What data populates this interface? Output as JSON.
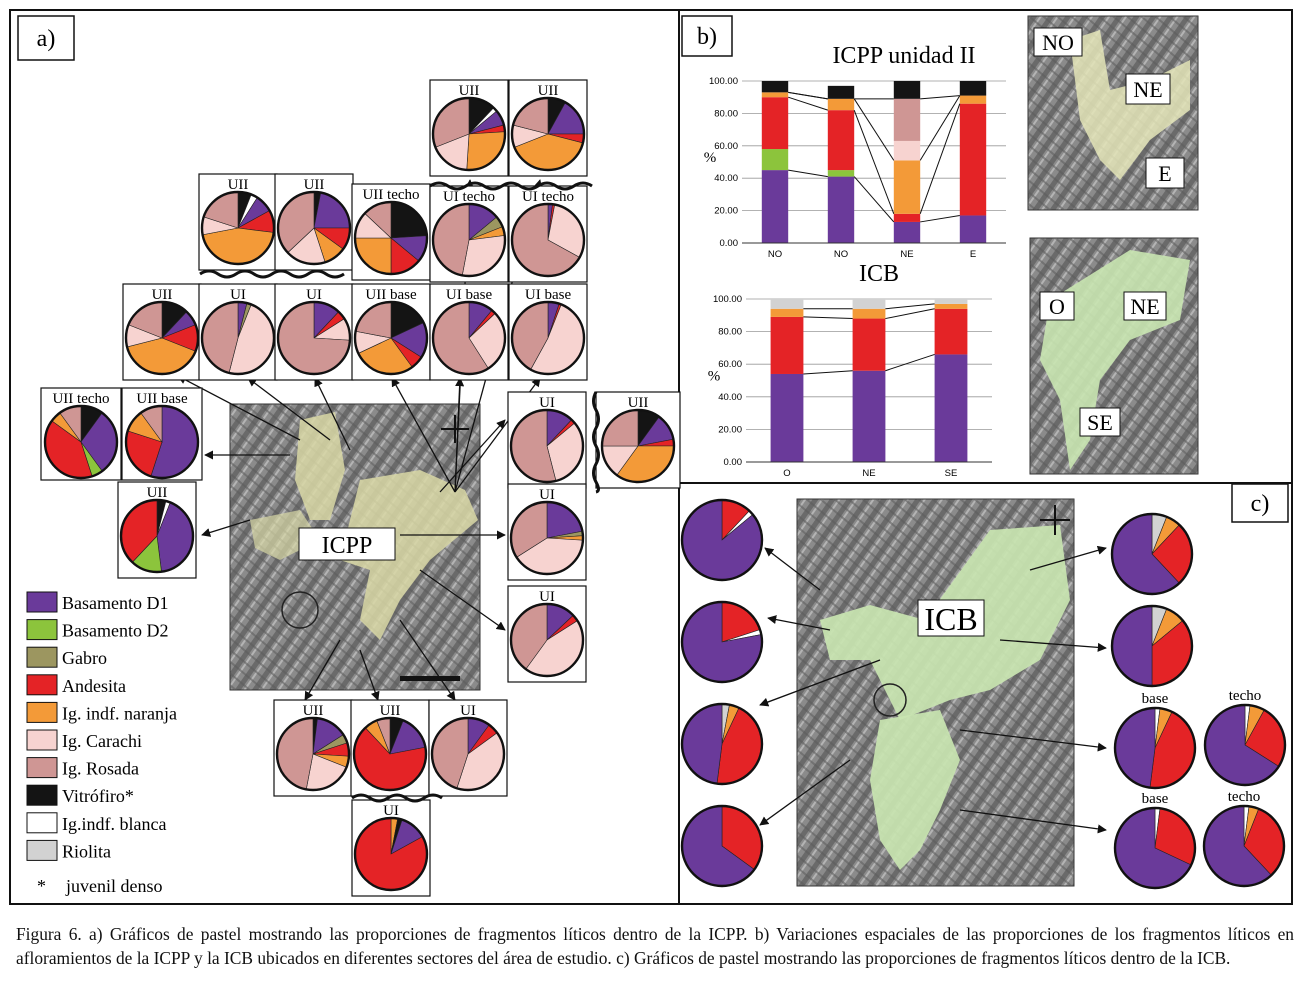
{
  "panels": {
    "a": "a)",
    "b": "b)",
    "c": "c)"
  },
  "colors": {
    "Basamento D1": "#6a3a9a",
    "Basamento D2": "#8cc43c",
    "Gabro": "#9c9660",
    "Andesita": "#e42326",
    "Ig. indf. naranja": "#f39a38",
    "Ig. Carachi": "#f7d3d0",
    "Ig. Rosada": "#cf9694",
    "Vitrófiro*": "#141414",
    "Ig.indf. blanca": "#ffffff",
    "Riolita": "#d2d2d2"
  },
  "legend": {
    "items": [
      "Basamento D1",
      "Basamento D2",
      "Gabro",
      "Andesita",
      "Ig. indf. naranja",
      "Ig. Carachi",
      "Ig. Rosada",
      "Vitrófiro*",
      "Ig.indf. blanca",
      "Riolita"
    ],
    "footnote_mark": "*",
    "footnote": "juvenil denso"
  },
  "map_labels": {
    "icpp": "ICPP",
    "icb": "ICB"
  },
  "inset_labels": {
    "icpp": [
      "NO",
      "NE",
      "E"
    ],
    "icb": [
      "O",
      "NE",
      "SE"
    ]
  },
  "chart_data": [
    {
      "type": "bar",
      "stacked": true,
      "title": "ICPP unidad II",
      "xlabel": "",
      "ylabel": "%",
      "categories": [
        "NO",
        "NO",
        "NE",
        "E"
      ],
      "ylim": [
        0,
        100
      ],
      "yticks": [
        "0.00",
        "20.00",
        "40.00",
        "60.00",
        "80.00",
        "100.00"
      ],
      "series": [
        {
          "name": "Basamento D1",
          "values": [
            45,
            41,
            13,
            17
          ]
        },
        {
          "name": "Basamento D2",
          "values": [
            13,
            4,
            0,
            0
          ]
        },
        {
          "name": "Andesita",
          "values": [
            32,
            37,
            5,
            69
          ]
        },
        {
          "name": "Ig. indf. naranja",
          "values": [
            3,
            7,
            33,
            5
          ]
        },
        {
          "name": "Ig. Carachi",
          "values": [
            0,
            0,
            12,
            0
          ]
        },
        {
          "name": "Ig. Rosada",
          "values": [
            0,
            0,
            26,
            0
          ]
        },
        {
          "name": "Vitrófiro*",
          "values": [
            7,
            8,
            11,
            9
          ]
        }
      ]
    },
    {
      "type": "bar",
      "stacked": true,
      "title": "ICB",
      "xlabel": "",
      "ylabel": "%",
      "categories": [
        "O",
        "NE",
        "SE"
      ],
      "ylim": [
        0,
        100
      ],
      "yticks": [
        "0.00",
        "20.00",
        "40.00",
        "60.00",
        "80.00",
        "100.00"
      ],
      "series": [
        {
          "name": "Basamento D1",
          "values": [
            54,
            56,
            66
          ]
        },
        {
          "name": "Andesita",
          "values": [
            35,
            32,
            28
          ]
        },
        {
          "name": "Ig. indf. naranja",
          "values": [
            5,
            6,
            3
          ]
        },
        {
          "name": "Riolita",
          "values": [
            6,
            6,
            3
          ]
        }
      ]
    },
    {
      "type": "pie",
      "panel": "a",
      "pies": [
        {
          "label": "UII",
          "slices": {
            "Vitrófiro*": 12,
            "Ig.indf. blanca": 2,
            "Basamento D1": 7,
            "Andesita": 3,
            "Ig. indf. naranja": 27,
            "Ig. Carachi": 18,
            "Ig. Rosada": 31
          }
        },
        {
          "label": "UII",
          "slices": {
            "Vitrófiro*": 8,
            "Basamento D1": 17,
            "Andesita": 4,
            "Ig. indf. naranja": 40,
            "Ig. Carachi": 10,
            "Ig. Rosada": 21
          }
        },
        {
          "label": "UII",
          "slices": {
            "Vitrófiro*": 6,
            "Ig.indf. blanca": 3,
            "Basamento D1": 8,
            "Andesita": 10,
            "Ig. indf. naranja": 45,
            "Ig. Carachi": 8,
            "Ig. Rosada": 20
          }
        },
        {
          "label": "UII",
          "slices": {
            "Vitrófiro*": 3,
            "Basamento D1": 22,
            "Andesita": 10,
            "Ig. indf. naranja": 10,
            "Ig. Carachi": 18,
            "Ig. Rosada": 37
          }
        },
        {
          "label": "UII techo",
          "slices": {
            "Vitrófiro*": 24,
            "Basamento D1": 12,
            "Andesita": 14,
            "Ig. indf. naranja": 25,
            "Ig. Carachi": 12,
            "Ig. Rosada": 13
          }
        },
        {
          "label": "UI techo",
          "slices": {
            "Basamento D1": 14,
            "Gabro": 5,
            "Ig. indf. naranja": 4,
            "Ig. Carachi": 30,
            "Ig. Rosada": 47
          }
        },
        {
          "label": "UI techo",
          "slices": {
            "Basamento D1": 2,
            "Andesita": 1,
            "Ig. Carachi": 30,
            "Ig. Rosada": 67
          }
        },
        {
          "label": "UII",
          "slices": {
            "Vitrófiro*": 12,
            "Basamento D1": 7,
            "Andesita": 12,
            "Ig. indf. naranja": 40,
            "Ig. Carachi": 10,
            "Ig. Rosada": 19
          }
        },
        {
          "label": "UI",
          "slices": {
            "Basamento D1": 4,
            "Gabro": 2,
            "Ig. Carachi": 48,
            "Ig. Rosada": 46
          }
        },
        {
          "label": "UI",
          "slices": {
            "Basamento D1": 12,
            "Andesita": 4,
            "Ig. Carachi": 10,
            "Ig. Rosada": 74
          }
        },
        {
          "label": "UII base",
          "slices": {
            "Vitrófiro*": 18,
            "Basamento D1": 16,
            "Andesita": 6,
            "Ig. indf. naranja": 28,
            "Ig. Carachi": 10,
            "Ig. Rosada": 22
          }
        },
        {
          "label": "UI base",
          "slices": {
            "Basamento D1": 11,
            "Andesita": 2,
            "Ig. Carachi": 28,
            "Ig. Rosada": 59
          }
        },
        {
          "label": "UI base",
          "slices": {
            "Basamento D1": 5,
            "Andesita": 1,
            "Ig. Carachi": 52,
            "Ig. Rosada": 42
          }
        },
        {
          "label": "UII techo",
          "slices": {
            "Vitrófiro*": 10,
            "Basamento D1": 30,
            "Basamento D2": 5,
            "Andesita": 40,
            "Ig. indf. naranja": 5,
            "Ig. Rosada": 10
          }
        },
        {
          "label": "UII base",
          "slices": {
            "Basamento D1": 55,
            "Andesita": 25,
            "Ig. indf. naranja": 10,
            "Ig. Rosada": 10
          }
        },
        {
          "label": "UII",
          "slices": {
            "Vitrófiro*": 4,
            "Ig.indf. blanca": 2,
            "Basamento D1": 42,
            "Basamento D2": 14,
            "Andesita": 38
          }
        },
        {
          "label": "UI",
          "slices": {
            "Basamento D1": 12,
            "Andesita": 2,
            "Ig. Carachi": 32,
            "Ig. Rosada": 54
          }
        },
        {
          "label": "UII",
          "slices": {
            "Vitrófiro*": 10,
            "Basamento D1": 12,
            "Andesita": 3,
            "Ig. indf. naranja": 35,
            "Ig. Carachi": 15,
            "Ig. Rosada": 25
          }
        },
        {
          "label": "UI",
          "slices": {
            "Basamento D1": 22,
            "Gabro": 2,
            "Ig. indf. naranja": 2,
            "Ig. Carachi": 40,
            "Ig. Rosada": 34
          }
        },
        {
          "label": "UI",
          "slices": {
            "Basamento D1": 13,
            "Andesita": 3,
            "Ig. Carachi": 44,
            "Ig. Rosada": 40
          }
        },
        {
          "label": "UII",
          "slices": {
            "Vitrófiro*": 2,
            "Basamento D1": 14,
            "Gabro": 4,
            "Andesita": 6,
            "Ig. indf. naranja": 5,
            "Ig. Carachi": 22,
            "Ig. Rosada": 47
          }
        },
        {
          "label": "UII",
          "slices": {
            "Vitrófiro*": 6,
            "Basamento D1": 16,
            "Andesita": 66,
            "Ig. indf. naranja": 6,
            "Ig. Rosada": 6
          }
        },
        {
          "label": "UI",
          "slices": {
            "Basamento D1": 10,
            "Andesita": 5,
            "Ig. Carachi": 40,
            "Ig. Rosada": 45
          }
        },
        {
          "label": "UI",
          "slices": {
            "Ig. indf. naranja": 3,
            "Vitrófiro*": 2,
            "Basamento D1": 12,
            "Andesita": 83
          }
        }
      ]
    },
    {
      "type": "pie",
      "panel": "c",
      "pies": [
        {
          "label": "",
          "slices": {
            "Andesita": 12,
            "Ig.indf. blanca": 2,
            "Basamento D1": 86
          }
        },
        {
          "label": "",
          "slices": {
            "Andesita": 20,
            "Ig.indf. blanca": 2,
            "Basamento D1": 78
          }
        },
        {
          "label": "",
          "slices": {
            "Riolita": 3,
            "Ig. indf. naranja": 4,
            "Andesita": 45,
            "Basamento D1": 48
          }
        },
        {
          "label": "",
          "slices": {
            "Andesita": 35,
            "Basamento D1": 65
          }
        },
        {
          "label": "",
          "slices": {
            "Riolita": 6,
            "Ig. indf. naranja": 6,
            "Andesita": 26,
            "Basamento D1": 62
          }
        },
        {
          "label": "",
          "slices": {
            "Riolita": 6,
            "Ig. indf. naranja": 8,
            "Andesita": 36,
            "Basamento D1": 50
          }
        },
        {
          "label": "base",
          "slices": {
            "Ig.indf. blanca": 2,
            "Ig. indf. naranja": 5,
            "Andesita": 45,
            "Basamento D1": 48
          }
        },
        {
          "label": "techo",
          "slices": {
            "Ig.indf. blanca": 2,
            "Ig. indf. naranja": 6,
            "Andesita": 26,
            "Basamento D1": 66
          }
        },
        {
          "label": "base",
          "slices": {
            "Ig.indf. blanca": 2,
            "Andesita": 30,
            "Basamento D1": 68
          }
        },
        {
          "label": "techo",
          "slices": {
            "Ig.indf. blanca": 2,
            "Ig. indf. naranja": 4,
            "Andesita": 32,
            "Basamento D1": 62
          }
        }
      ]
    }
  ],
  "caption": "Figura 6. a) Gráficos de pastel mostrando las proporciones de fragmentos líticos dentro de la ICPP. b) Variaciones espaciales de las proporciones de los fragmentos líticos en afloramientos de la ICPP y la ICB ubicados en diferentes sectores del área de estudio. c) Gráficos de pastel mostrando las proporciones de fragmentos líticos dentro de la ICB."
}
